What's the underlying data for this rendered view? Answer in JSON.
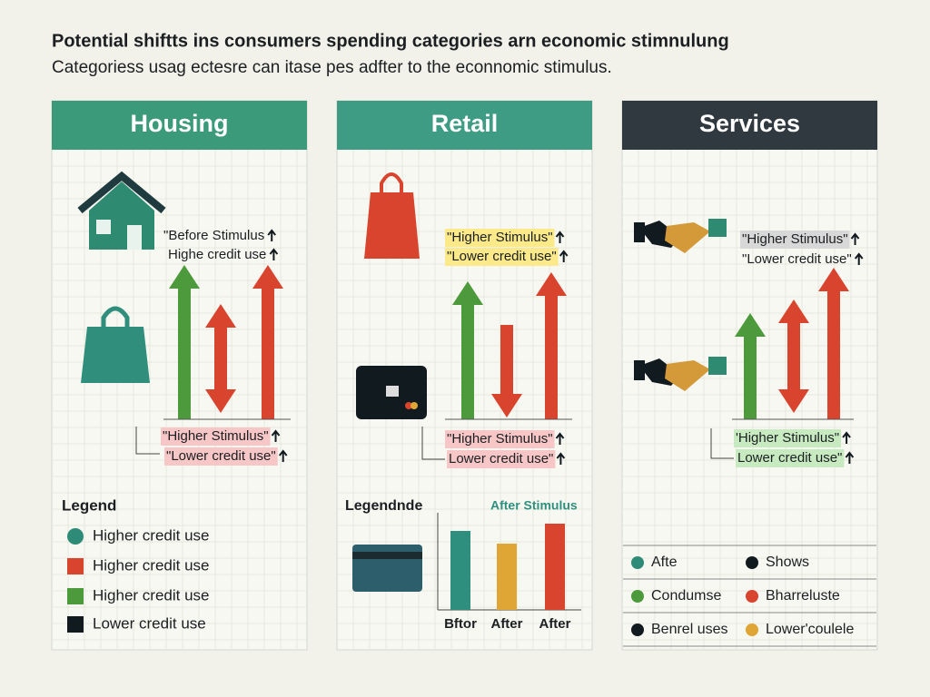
{
  "header": {
    "title": "Potential shiftts ins consumers spending categories arn economic stimnulung",
    "subtitle": "Categoriess usag ectesre can itase pes adfter to the econnomic stimulus."
  },
  "panels": [
    {
      "title": "Housing",
      "color": "#3b9a79",
      "top_labels": [
        "\"Before Stimulus",
        "Highe credit use"
      ],
      "bottom_labels": [
        "\"Higher Stimulus\"",
        "\"Lower credit use\""
      ],
      "legend": {
        "title": "Legend",
        "items": [
          {
            "label": "Higher credit use",
            "color": "#2e8b78",
            "shape": "circle"
          },
          {
            "label": "Higher credit use",
            "color": "#d9442e",
            "shape": "square"
          },
          {
            "label": "Higher credit use",
            "color": "#4c9a3c",
            "shape": "square"
          },
          {
            "label": "Lower credit use",
            "color": "#111a1e",
            "shape": "square"
          }
        ]
      }
    },
    {
      "title": "Retail",
      "color": "#3d9c83",
      "top_labels": [
        "\"Higher Stimulus\"",
        "\"Lower credit use\""
      ],
      "bottom_labels": [
        "\"Higher Stimulus\"",
        "Lower credit use\""
      ],
      "legend": {
        "title": "Legendnde",
        "chart_title": "After Stimulus",
        "categories": [
          "Bftor",
          "After",
          "After"
        ],
        "values": [
          87,
          73,
          95
        ],
        "colors": [
          "#2f8f7e",
          "#e0a635",
          "#d9442e"
        ]
      }
    },
    {
      "title": "Services",
      "color": "#2f393f",
      "top_labels": [
        "\"Higher Stimulus\"",
        "\"Lower credit use\""
      ],
      "bottom_labels": [
        "'Higher Stimulus\"",
        "Lower credit use\""
      ],
      "legend": {
        "items": [
          {
            "label": "Afte",
            "color": "#2e8b78"
          },
          {
            "label": "Shows",
            "color": "#111a1e"
          },
          {
            "label": "Condumse",
            "color": "#4c9a3c"
          },
          {
            "label": "Bharreluste",
            "color": "#d9442e"
          },
          {
            "label": "Benrel uses",
            "color": "#111a1e"
          },
          {
            "label": "Lower'coulele",
            "color": "#e0a635"
          }
        ]
      }
    }
  ]
}
